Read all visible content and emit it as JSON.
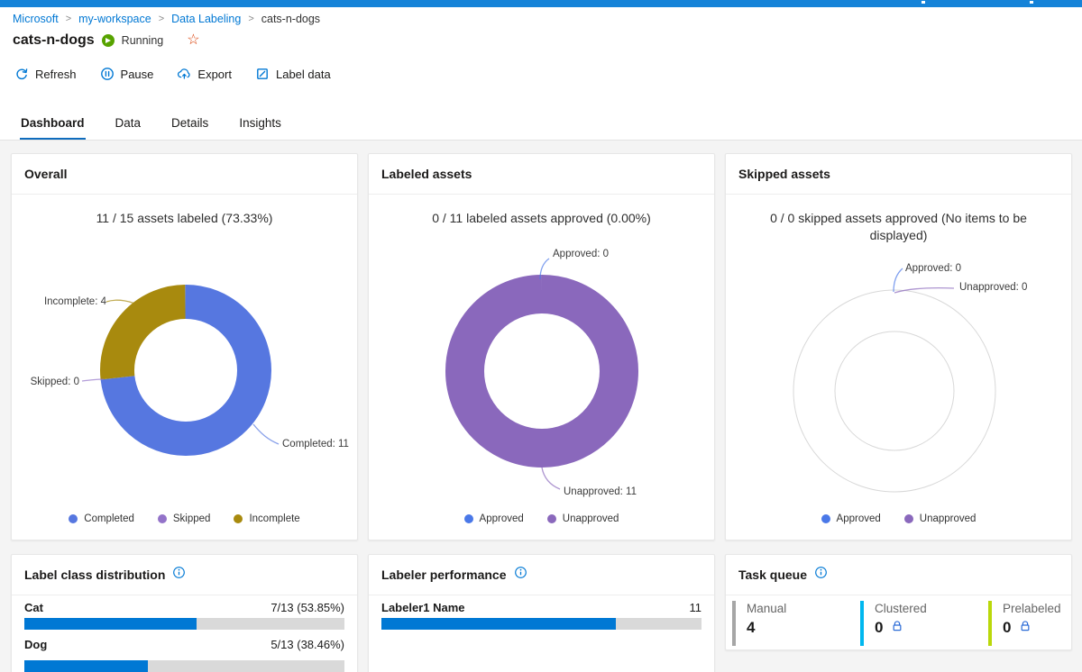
{
  "breadcrumb": {
    "items": [
      "Microsoft",
      "my-workspace",
      "Data Labeling",
      "cats-n-dogs"
    ],
    "separator": ">"
  },
  "page": {
    "title": "cats-n-dogs",
    "status": "Running"
  },
  "toolbar": {
    "buttons": [
      "Refresh",
      "Pause",
      "Export",
      "Label data"
    ]
  },
  "tabs": {
    "items": [
      "Dashboard",
      "Data",
      "Details",
      "Insights"
    ],
    "active": "Dashboard"
  },
  "colors": {
    "accent_blue": "#0078d4",
    "running_green": "#57a300",
    "star_orange": "#d83b01",
    "bar_fill": "#0078d4",
    "bar_track": "#d9d9d9"
  },
  "chart_data": [
    {
      "type": "pie",
      "variant": "donut",
      "title": "Overall",
      "subtitle": "11 / 15 assets labeled (73.33%)",
      "labels": [
        "Completed",
        "Skipped",
        "Incomplete"
      ],
      "values": [
        11,
        0,
        4
      ],
      "total": 15,
      "colors": [
        "#5677E0",
        "#9373C9",
        "#A88A0E"
      ],
      "annotations": [
        "Completed: 11",
        "Skipped: 0",
        "Incomplete: 4"
      ],
      "legend_position": "bottom"
    },
    {
      "type": "pie",
      "variant": "donut",
      "title": "Labeled assets",
      "subtitle": "0 / 11 labeled assets approved (0.00%)",
      "labels": [
        "Approved",
        "Unapproved"
      ],
      "values": [
        0,
        11
      ],
      "total": 11,
      "colors": [
        "#4A78E8",
        "#8A68BC"
      ],
      "annotations": [
        "Approved: 0",
        "Unapproved: 11"
      ],
      "legend_position": "bottom"
    },
    {
      "type": "pie",
      "variant": "donut-empty",
      "title": "Skipped assets",
      "subtitle": "0 / 0 skipped assets approved (No items to be displayed)",
      "labels": [
        "Approved",
        "Unapproved"
      ],
      "values": [
        0,
        0
      ],
      "total": 0,
      "colors": [
        "#4A78E8",
        "#8A68BC"
      ],
      "annotations": [
        "Approved: 0",
        "Unapproved: 0"
      ],
      "legend_position": "bottom"
    },
    {
      "type": "bar",
      "title": "Label class distribution",
      "categories": [
        "Cat",
        "Dog"
      ],
      "values": [
        7,
        5
      ],
      "total": 13,
      "value_labels": [
        "7/13 (53.85%)",
        "5/13 (38.46%)"
      ],
      "percents": [
        53.85,
        38.46
      ],
      "bar_color": "#0078d4"
    },
    {
      "type": "bar",
      "title": "Labeler performance",
      "categories": [
        "Labeler1 Name"
      ],
      "values": [
        11
      ],
      "value_labels": [
        "11"
      ],
      "percents": [
        73.33
      ],
      "bar_color": "#0078d4"
    },
    {
      "type": "table",
      "title": "Task queue",
      "items": [
        {
          "label": "Manual",
          "value": "4",
          "locked": false,
          "accent": "#a6a6a6"
        },
        {
          "label": "Clustered",
          "value": "0",
          "locked": true,
          "accent": "#00b7ef"
        },
        {
          "label": "Prelabeled",
          "value": "0",
          "locked": true,
          "accent": "#bad80a"
        }
      ]
    }
  ]
}
